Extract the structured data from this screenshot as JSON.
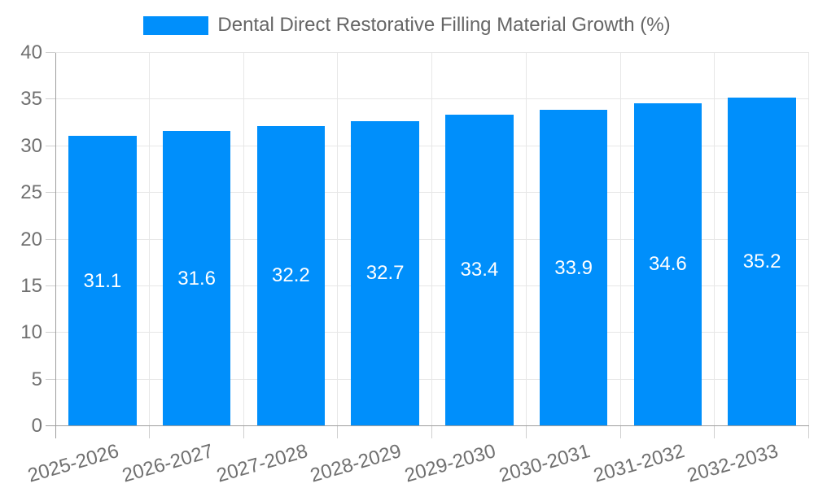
{
  "legend": {
    "label": "Dental Direct Restorative Filling Material Growth (%)",
    "swatch_color": "#008FFB"
  },
  "chart_data": {
    "type": "bar",
    "title": "Dental Direct Restorative Filling Material Growth (%)",
    "categories": [
      "2025-2026",
      "2026-2027",
      "2027-2028",
      "2028-2029",
      "2029-2030",
      "2030-2031",
      "2031-2032",
      "2032-2033"
    ],
    "values": [
      31.1,
      31.6,
      32.2,
      32.7,
      33.4,
      33.9,
      34.6,
      35.2
    ],
    "value_labels": [
      "31.1",
      "31.6",
      "32.2",
      "32.7",
      "33.4",
      "33.9",
      "34.6",
      "35.2"
    ],
    "xlabel": "",
    "ylabel": "",
    "ylim": [
      0,
      40
    ],
    "ytick_step": 5,
    "ytick_labels": [
      "0",
      "5",
      "10",
      "15",
      "20",
      "25",
      "30",
      "35",
      "40"
    ],
    "grid": true,
    "legend_position": "top",
    "value_label_position": "inside-center"
  },
  "colors": {
    "bar": "#008FFB",
    "grid": "#e7e7e7",
    "axis": "#9e9e9e",
    "tick": "#cfcfcf",
    "tick_text": "#707070",
    "legend_text": "#666666",
    "value_text": "#ffffff",
    "background": "#ffffff"
  }
}
